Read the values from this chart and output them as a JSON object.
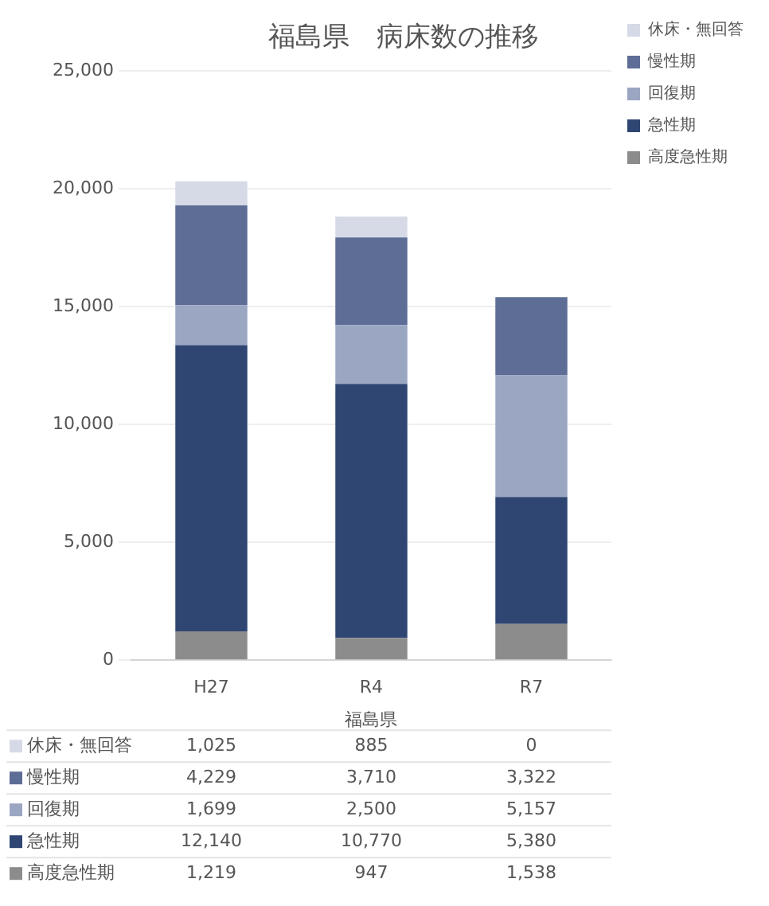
{
  "chart_data": {
    "type": "bar",
    "title": "福島県　病床数の推移",
    "xlabel": "福島県",
    "categories": [
      "H27",
      "R4",
      "R7"
    ],
    "stacked": true,
    "ylim": [
      0,
      25000
    ],
    "yticks": [
      {
        "value": 0,
        "label": "0"
      },
      {
        "value": 5000,
        "label": "5,000"
      },
      {
        "value": 10000,
        "label": "10,000"
      },
      {
        "value": 15000,
        "label": "15,000"
      },
      {
        "value": 20000,
        "label": "20,000"
      },
      {
        "value": 25000,
        "label": "25,000"
      }
    ],
    "grid": "y",
    "legend": "right",
    "series": [
      {
        "name": "高度急性期",
        "color": "#8c8c8c",
        "values": [
          1219,
          947,
          1538
        ],
        "value_labels": [
          "1,219",
          "947",
          "1,538"
        ]
      },
      {
        "name": "急性期",
        "color": "#2f4673",
        "values": [
          12140,
          10770,
          5380
        ],
        "value_labels": [
          "12,140",
          "10,770",
          "5,380"
        ]
      },
      {
        "name": "回復期",
        "color": "#9aa6c2",
        "values": [
          1699,
          2500,
          5157
        ],
        "value_labels": [
          "1,699",
          "2,500",
          "5,157"
        ]
      },
      {
        "name": "慢性期",
        "color": "#5d6d96",
        "values": [
          4229,
          3710,
          3322
        ],
        "value_labels": [
          "4,229",
          "3,710",
          "3,322"
        ]
      },
      {
        "name": "休床・無回答",
        "color": "#d5dae6",
        "values": [
          1025,
          885,
          0
        ],
        "value_labels": [
          "1,025",
          "885",
          "0"
        ]
      }
    ]
  }
}
